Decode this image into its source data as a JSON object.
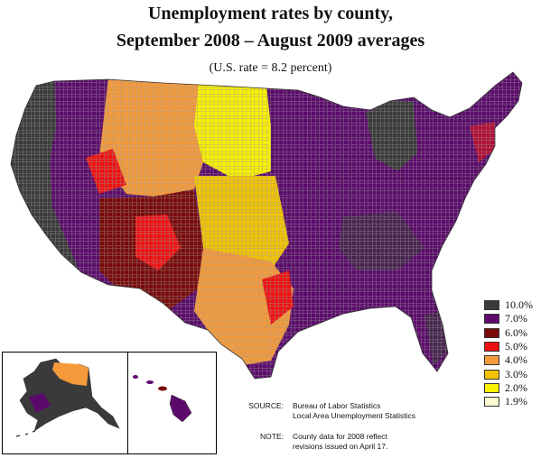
{
  "title_line1": "Unemployment rates by county,",
  "title_line2": "September 2008 – August 2009 averages",
  "subtitle": "(U.S. rate = 8.2 percent)",
  "legend": [
    {
      "label": "10.0%",
      "color": "#3a3a3a"
    },
    {
      "label": "7.0%",
      "color": "#5b0a6b"
    },
    {
      "label": "6.0%",
      "color": "#7a0a0a"
    },
    {
      "label": "5.0%",
      "color": "#ee1111"
    },
    {
      "label": "4.0%",
      "color": "#f59a3a"
    },
    {
      "label": "3.0%",
      "color": "#f2c400"
    },
    {
      "label": "2.0%",
      "color": "#f9f100"
    },
    {
      "label": "1.9%",
      "color": "#fdfbcf"
    }
  ],
  "source": {
    "key": "SOURCE:",
    "line1": "Bureau of Labor Statistics",
    "line2": "Local Area Unemployment Statistics"
  },
  "note": {
    "key": "NOTE:",
    "line1": "County data for 2008 reflect",
    "line2": "revisions issued on April 17."
  },
  "regions": [
    {
      "region": "Pacific Coast",
      "rate_class": "10.0%"
    },
    {
      "region": "Nevada / Great Basin",
      "rate_class": "7.0%"
    },
    {
      "region": "Northern Rockies",
      "rate_class": "4.0%"
    },
    {
      "region": "Northern Plains",
      "rate_class": "2.0%"
    },
    {
      "region": "Central Plains",
      "rate_class": "3.0%"
    },
    {
      "region": "Southwest",
      "rate_class": "6.0%"
    },
    {
      "region": "Texas",
      "rate_class": "4.0%"
    },
    {
      "region": "Midwest",
      "rate_class": "7.0%"
    },
    {
      "region": "Michigan",
      "rate_class": "10.0%"
    },
    {
      "region": "Southeast",
      "rate_class": "7.0%"
    },
    {
      "region": "Northeast",
      "rate_class": "7.0%"
    }
  ]
}
